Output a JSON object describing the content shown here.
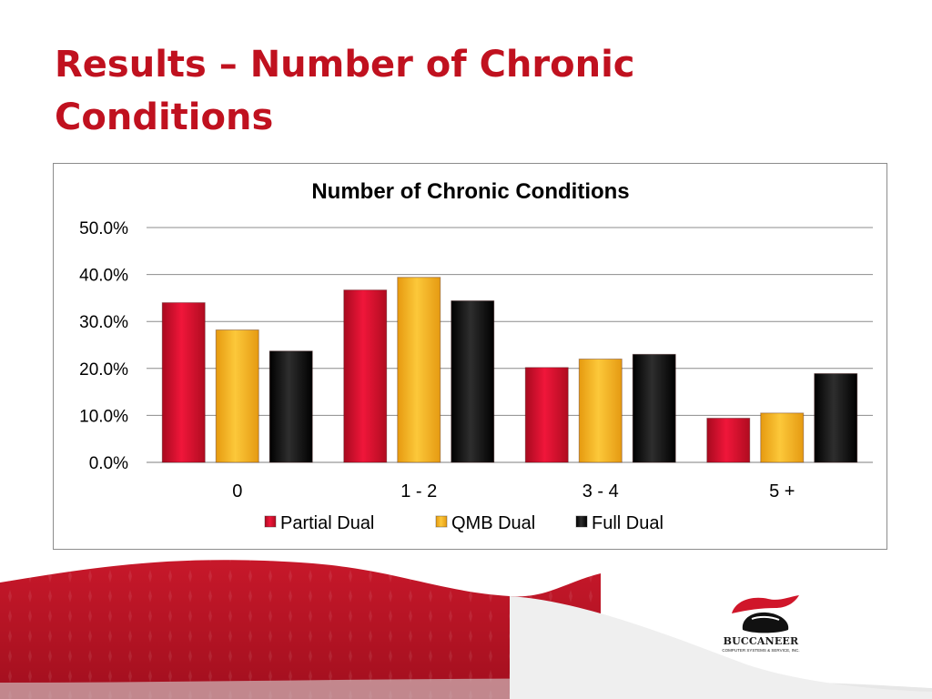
{
  "slide": {
    "title_line1": "Results – Number of Chronic",
    "title_line2": "Conditions",
    "title_color": "#c0111f"
  },
  "logo": {
    "name": "BUCCANEER",
    "subtitle": "COMPUTER SYSTEMS & SERVICE, INC."
  },
  "chart_data": {
    "type": "bar",
    "title": "Number of Chronic Conditions",
    "xlabel": "",
    "ylabel": "",
    "categories": [
      "0",
      "1 - 2",
      "3 - 4",
      "5 +"
    ],
    "series": [
      {
        "name": "Partial Dual",
        "color": "#e0102c",
        "values": [
          34.0,
          36.7,
          20.2,
          9.4
        ]
      },
      {
        "name": "QMB Dual",
        "color": "#f6b21e",
        "values": [
          28.2,
          39.4,
          22.0,
          10.5
        ]
      },
      {
        "name": "Full Dual",
        "color": "#111111",
        "values": [
          23.7,
          34.4,
          23.0,
          18.9
        ]
      }
    ],
    "ylim": [
      0,
      50
    ],
    "yticks": [
      "0.0%",
      "10.0%",
      "20.0%",
      "30.0%",
      "40.0%",
      "50.0%"
    ],
    "grid": true,
    "legend_position": "bottom"
  }
}
